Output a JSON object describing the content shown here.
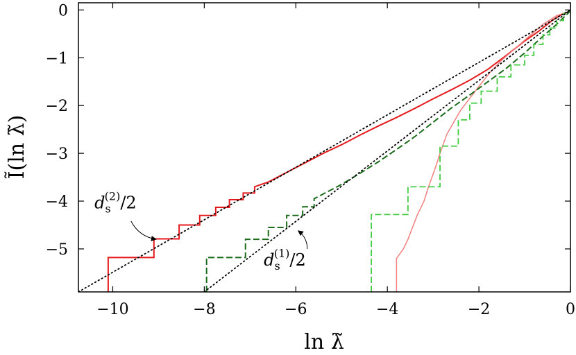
{
  "chart_data": {
    "type": "line",
    "xlabel": "ln λ̃",
    "ylabel": "Ĩ(ln λ̃)",
    "xlim": [
      -10.75,
      0
    ],
    "ylim": [
      -5.9,
      0.15
    ],
    "x_ticks": [
      -10,
      -8,
      -6,
      -4,
      -2,
      0
    ],
    "x_tick_labels": [
      "−10",
      "−8",
      "−6",
      "−4",
      "−2",
      "0"
    ],
    "y_ticks": [
      0,
      -1,
      -2,
      -3,
      -4,
      -5
    ],
    "y_tick_labels": [
      "0",
      "−1",
      "−2",
      "−3",
      "−4",
      "−5"
    ],
    "grid": false,
    "series": [
      {
        "color": "#e41a1c",
        "style": "solid",
        "width": 2,
        "points": [
          [
            -10.1,
            -5.9
          ],
          [
            -10.1,
            -5.18
          ],
          [
            -9.1,
            -5.18
          ],
          [
            -9.1,
            -4.79
          ],
          [
            -8.55,
            -4.79
          ],
          [
            -8.55,
            -4.5
          ],
          [
            -8.1,
            -4.5
          ],
          [
            -8.1,
            -4.3
          ],
          [
            -7.75,
            -4.3
          ],
          [
            -7.75,
            -4.13
          ],
          [
            -7.45,
            -4.13
          ],
          [
            -7.45,
            -3.97
          ],
          [
            -7.15,
            -3.97
          ],
          [
            -7.15,
            -3.83
          ],
          [
            -6.9,
            -3.83
          ],
          [
            -6.9,
            -3.7
          ],
          [
            -6.6,
            -3.6
          ],
          [
            -6.3,
            -3.45
          ],
          [
            -6.0,
            -3.3
          ],
          [
            -5.7,
            -3.15
          ],
          [
            -5.4,
            -3.0
          ],
          [
            -5.0,
            -2.82
          ],
          [
            -4.6,
            -2.62
          ],
          [
            -4.2,
            -2.43
          ],
          [
            -3.8,
            -2.25
          ],
          [
            -3.4,
            -2.06
          ],
          [
            -3.0,
            -1.86
          ],
          [
            -2.6,
            -1.67
          ],
          [
            -2.2,
            -1.47
          ],
          [
            -1.8,
            -1.24
          ],
          [
            -1.4,
            -0.95
          ],
          [
            -1.0,
            -0.65
          ],
          [
            -0.7,
            -0.45
          ],
          [
            -0.4,
            -0.22
          ],
          [
            -0.2,
            -0.1
          ],
          [
            0,
            -0.02
          ]
        ]
      },
      {
        "color": "#f08080",
        "style": "solid",
        "width": 1.5,
        "points": [
          [
            -3.8,
            -5.9
          ],
          [
            -3.8,
            -5.2
          ],
          [
            -3.65,
            -5.0
          ],
          [
            -3.55,
            -4.8
          ],
          [
            -3.45,
            -4.55
          ],
          [
            -3.35,
            -4.3
          ],
          [
            -3.2,
            -4.0
          ],
          [
            -3.1,
            -3.7
          ],
          [
            -2.95,
            -3.3
          ],
          [
            -2.85,
            -3.0
          ],
          [
            -2.7,
            -2.6
          ],
          [
            -2.55,
            -2.35
          ],
          [
            -2.4,
            -2.1
          ],
          [
            -2.2,
            -1.85
          ],
          [
            -2.0,
            -1.6
          ],
          [
            -1.75,
            -1.3
          ],
          [
            -1.5,
            -1.05
          ],
          [
            -1.2,
            -0.8
          ],
          [
            -0.9,
            -0.55
          ],
          [
            -0.6,
            -0.3
          ],
          [
            -0.3,
            -0.12
          ],
          [
            0,
            -0.02
          ]
        ]
      },
      {
        "color": "#1a6b1a",
        "style": "dashed",
        "width": 2,
        "points": [
          [
            -7.95,
            -5.9
          ],
          [
            -7.95,
            -5.18
          ],
          [
            -7.1,
            -5.18
          ],
          [
            -7.1,
            -4.8
          ],
          [
            -6.6,
            -4.8
          ],
          [
            -6.6,
            -4.55
          ],
          [
            -6.2,
            -4.55
          ],
          [
            -6.2,
            -4.3
          ],
          [
            -5.85,
            -4.3
          ],
          [
            -5.85,
            -4.12
          ],
          [
            -5.6,
            -4.12
          ],
          [
            -5.6,
            -3.95
          ],
          [
            -5.3,
            -3.8
          ],
          [
            -5.0,
            -3.65
          ],
          [
            -4.6,
            -3.42
          ],
          [
            -4.2,
            -3.18
          ],
          [
            -3.8,
            -2.92
          ],
          [
            -3.4,
            -2.65
          ],
          [
            -3.0,
            -2.35
          ],
          [
            -2.6,
            -2.05
          ],
          [
            -2.2,
            -1.78
          ],
          [
            -1.8,
            -1.5
          ],
          [
            -1.4,
            -1.22
          ],
          [
            -1.0,
            -0.9
          ],
          [
            -0.6,
            -0.55
          ],
          [
            -0.3,
            -0.3
          ],
          [
            0,
            -0.02
          ]
        ]
      },
      {
        "color": "#44cc44",
        "style": "dashed",
        "width": 1.8,
        "points": [
          [
            -4.35,
            -5.9
          ],
          [
            -4.35,
            -4.28
          ],
          [
            -3.55,
            -4.28
          ],
          [
            -3.55,
            -3.7
          ],
          [
            -2.85,
            -3.7
          ],
          [
            -2.85,
            -2.85
          ],
          [
            -2.45,
            -2.85
          ],
          [
            -2.45,
            -2.3
          ],
          [
            -2.2,
            -2.3
          ],
          [
            -2.2,
            -1.95
          ],
          [
            -1.95,
            -1.95
          ],
          [
            -1.95,
            -1.7
          ],
          [
            -1.6,
            -1.7
          ],
          [
            -1.6,
            -1.4
          ],
          [
            -1.3,
            -1.4
          ],
          [
            -1.3,
            -1.15
          ],
          [
            -1.0,
            -1.15
          ],
          [
            -1.0,
            -0.95
          ],
          [
            -0.8,
            -0.95
          ],
          [
            -0.8,
            -0.72
          ],
          [
            -0.6,
            -0.72
          ],
          [
            -0.6,
            -0.52
          ],
          [
            -0.45,
            -0.52
          ],
          [
            -0.45,
            -0.38
          ],
          [
            -0.3,
            -0.38
          ],
          [
            -0.3,
            -0.22
          ],
          [
            -0.15,
            -0.22
          ],
          [
            -0.15,
            -0.08
          ],
          [
            0,
            -0.02
          ]
        ]
      },
      {
        "color": "#000000",
        "style": "dotted",
        "width": 1.8,
        "points": [
          [
            -10.75,
            -5.9
          ],
          [
            0,
            0
          ]
        ]
      },
      {
        "color": "#000000",
        "style": "dotted",
        "width": 1.8,
        "points": [
          [
            -8.0,
            -5.9
          ],
          [
            0,
            0
          ]
        ]
      }
    ],
    "annotations": [
      {
        "text_main": "d",
        "text_sub": "s",
        "text_sup": "(2)",
        "text_tail": "/2",
        "text_x": -10.4,
        "text_y": -4.15,
        "arrow_from": [
          -9.6,
          -4.42
        ],
        "arrow_to": [
          -9.05,
          -4.8
        ]
      },
      {
        "text_main": "d",
        "text_sub": "s",
        "text_sup": "(1)",
        "text_tail": "/2",
        "text_x": -6.7,
        "text_y": -5.35,
        "arrow_from": [
          -5.75,
          -5.0
        ],
        "arrow_to": [
          -5.95,
          -4.62
        ]
      }
    ]
  }
}
